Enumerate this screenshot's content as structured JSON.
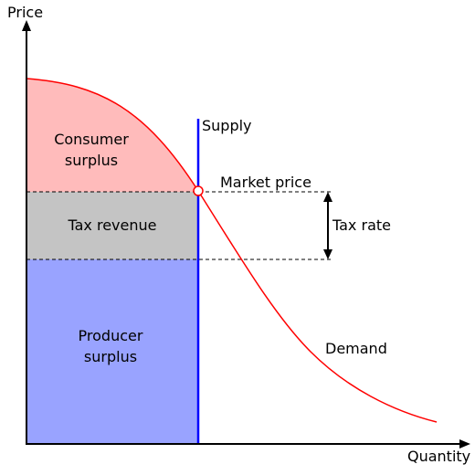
{
  "axes": {
    "y_label": "Price",
    "x_label": "Quantity"
  },
  "regions": {
    "consumer_surplus": {
      "line1": "Consumer",
      "line2": "surplus",
      "color": "#ffbbbb"
    },
    "tax_revenue": {
      "label": "Tax revenue",
      "color": "#c4c4c4"
    },
    "producer_surplus": {
      "line1": "Producer",
      "line2": "surplus",
      "color": "#99a3ff"
    }
  },
  "curves": {
    "supply": {
      "label": "Supply",
      "color": "#0000ff"
    },
    "demand": {
      "label": "Demand",
      "color": "#ff0000"
    }
  },
  "annotations": {
    "market_price": "Market price",
    "tax_rate": "Tax rate"
  }
}
